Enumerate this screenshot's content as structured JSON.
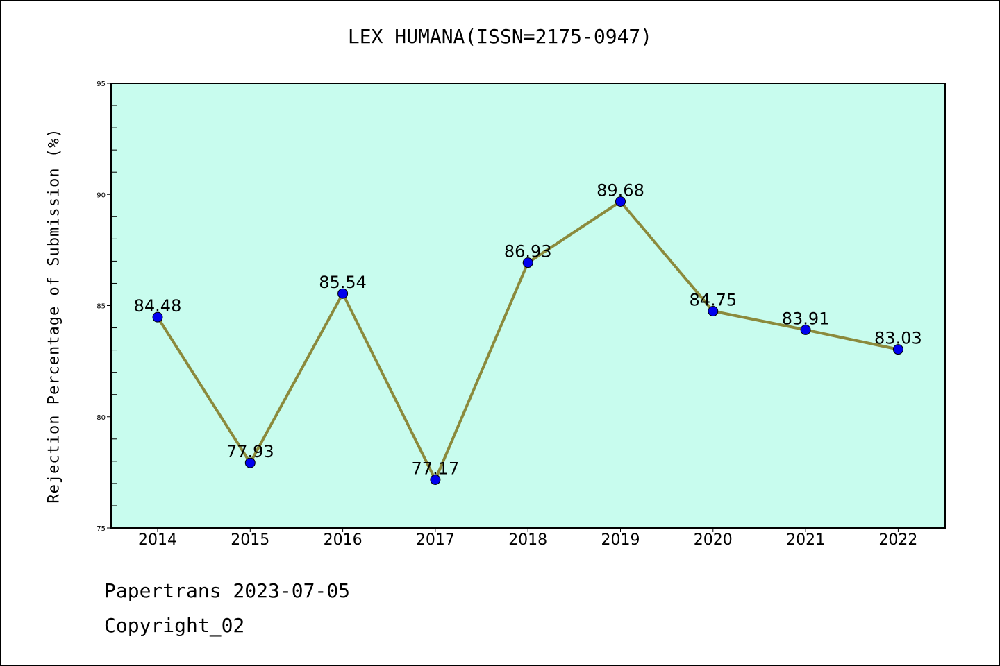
{
  "chart_data": {
    "type": "line",
    "title": "LEX HUMANA(ISSN=2175-0947)",
    "ylabel": "Rejection Percentage of Submission (%)",
    "xlabel": "",
    "categories": [
      "2014",
      "2015",
      "2016",
      "2017",
      "2018",
      "2019",
      "2020",
      "2021",
      "2022"
    ],
    "series": [
      {
        "values": [
          84.48,
          77.93,
          85.54,
          77.17,
          86.93,
          89.68,
          84.75,
          83.91,
          83.03
        ],
        "data_labels": [
          "84.48",
          "77.93",
          "85.54",
          "77.17",
          "86.93",
          "89.68",
          "84.75",
          "83.91",
          "83.03"
        ]
      }
    ],
    "ylim": [
      75,
      95
    ],
    "yticks": [
      "75",
      "80",
      "85",
      "90",
      "95"
    ],
    "grid": false,
    "colors": {
      "plot_background": "#c8fcee",
      "line": "#8b8a3c",
      "marker": "#0000ee"
    }
  },
  "footer": {
    "line1": "Papertrans 2023-07-05",
    "line2": "Copyright_02"
  }
}
